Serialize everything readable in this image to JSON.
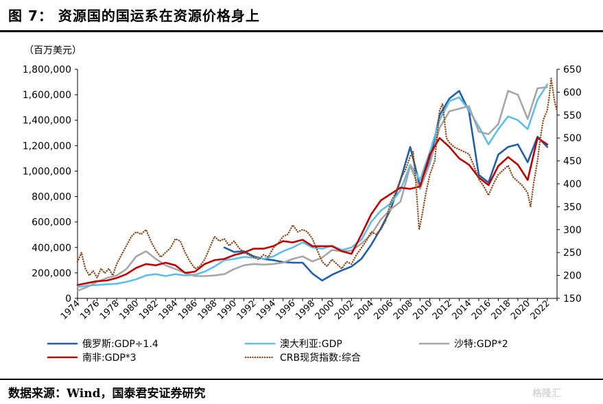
{
  "header": {
    "title": "图 7：  资源国的国运系在资源价格身上"
  },
  "footer": {
    "source": "数据来源：Wind，国泰君安证券研究",
    "watermark": "格隆汇"
  },
  "chart_data": {
    "type": "line",
    "unit_label": "（百万美元）",
    "ylim_left": [
      0,
      1800000
    ],
    "yticks_left": [
      "0",
      "200,000",
      "400,000",
      "600,000",
      "800,000",
      "1,000,000",
      "1,200,000",
      "1,400,000",
      "1,600,000",
      "1,800,000"
    ],
    "ylim_right": [
      150,
      650
    ],
    "yticks_right": [
      "150",
      "200",
      "250",
      "300",
      "350",
      "400",
      "450",
      "500",
      "550",
      "600",
      "650"
    ],
    "xlim": [
      1974,
      2023
    ],
    "xticks": [
      "1974",
      "1976",
      "1978",
      "1980",
      "1982",
      "1984",
      "1986",
      "1988",
      "1990",
      "1992",
      "1994",
      "1996",
      "1998",
      "2000",
      "2002",
      "2004",
      "2006",
      "2008",
      "2010",
      "2012",
      "2014",
      "2016",
      "2018",
      "2020",
      "2022"
    ],
    "grid": false,
    "legend_position": "bottom",
    "series": [
      {
        "name": "俄罗斯:GDP÷1.4",
        "color": "#1f5ea8",
        "style": "solid",
        "axis": "left",
        "x": [
          1989,
          1990,
          1991,
          1992,
          1993,
          1994,
          1995,
          1996,
          1997,
          1998,
          1999,
          2000,
          2001,
          2002,
          2003,
          2004,
          2005,
          2006,
          2007,
          2008,
          2009,
          2010,
          2011,
          2012,
          2013,
          2014,
          2015,
          2016,
          2017,
          2018,
          2019,
          2020,
          2021,
          2022
        ],
        "values": [
          400000,
          365000,
          370000,
          330000,
          310000,
          300000,
          285000,
          280000,
          280000,
          195000,
          140000,
          185000,
          220000,
          250000,
          310000,
          420000,
          550000,
          700000,
          930000,
          1190000,
          880000,
          1080000,
          1440000,
          1570000,
          1630000,
          1470000,
          970000,
          910000,
          1130000,
          1190000,
          1210000,
          1070000,
          1270000,
          1190000
        ]
      },
      {
        "name": "澳大利亚:GDP",
        "color": "#5bbfe9",
        "style": "solid",
        "axis": "left",
        "x": [
          1974,
          1975,
          1976,
          1977,
          1978,
          1979,
          1980,
          1981,
          1982,
          1983,
          1984,
          1985,
          1986,
          1987,
          1988,
          1989,
          1990,
          1991,
          1992,
          1993,
          1994,
          1995,
          1996,
          1997,
          1998,
          1999,
          2000,
          2001,
          2002,
          2003,
          2004,
          2005,
          2006,
          2007,
          2008,
          2009,
          2010,
          2011,
          2012,
          2013,
          2014,
          2015,
          2016,
          2017,
          2018,
          2019,
          2020,
          2021,
          2022
        ],
        "values": [
          90000,
          100000,
          105000,
          110000,
          115000,
          130000,
          150000,
          180000,
          190000,
          175000,
          190000,
          180000,
          185000,
          210000,
          250000,
          300000,
          310000,
          325000,
          320000,
          310000,
          330000,
          370000,
          400000,
          440000,
          400000,
          390000,
          415000,
          380000,
          400000,
          460000,
          600000,
          690000,
          745000,
          850000,
          1050000,
          930000,
          1150000,
          1400000,
          1550000,
          1580000,
          1480000,
          1350000,
          1210000,
          1330000,
          1430000,
          1400000,
          1330000,
          1560000,
          1680000
        ]
      },
      {
        "name": "沙特:GDP*2",
        "color": "#a6a6a6",
        "style": "solid",
        "axis": "left",
        "x": [
          1974,
          1975,
          1976,
          1977,
          1978,
          1979,
          1980,
          1981,
          1982,
          1983,
          1984,
          1985,
          1986,
          1987,
          1988,
          1989,
          1990,
          1991,
          1992,
          1993,
          1994,
          1995,
          1996,
          1997,
          1998,
          1999,
          2000,
          2001,
          2002,
          2003,
          2004,
          2005,
          2006,
          2007,
          2008,
          2009,
          2010,
          2011,
          2012,
          2013,
          2014,
          2015,
          2016,
          2017,
          2018,
          2019,
          2020,
          2021,
          2022
        ],
        "values": [
          60000,
          90000,
          130000,
          160000,
          180000,
          230000,
          330000,
          370000,
          310000,
          260000,
          230000,
          200000,
          175000,
          175000,
          180000,
          190000,
          230000,
          260000,
          270000,
          265000,
          270000,
          280000,
          310000,
          330000,
          290000,
          320000,
          380000,
          370000,
          375000,
          430000,
          500000,
          620000,
          700000,
          760000,
          1040000,
          860000,
          1060000,
          1340000,
          1470000,
          1490000,
          1510000,
          1310000,
          1290000,
          1370000,
          1630000,
          1600000,
          1410000,
          1650000,
          1660000
        ]
      },
      {
        "name": "南非:GDP*3",
        "color": "#c00000",
        "style": "solid",
        "axis": "left",
        "x": [
          1974,
          1975,
          1976,
          1977,
          1978,
          1979,
          1980,
          1981,
          1982,
          1983,
          1984,
          1985,
          1986,
          1987,
          1988,
          1989,
          1990,
          1991,
          1992,
          1993,
          1994,
          1995,
          1996,
          1997,
          1998,
          1999,
          2000,
          2001,
          2002,
          2003,
          2004,
          2005,
          2006,
          2007,
          2008,
          2009,
          2010,
          2011,
          2012,
          2013,
          2014,
          2015,
          2016,
          2017,
          2018,
          2019,
          2020,
          2021,
          2022
        ],
        "values": [
          105000,
          120000,
          135000,
          140000,
          160000,
          190000,
          240000,
          270000,
          260000,
          280000,
          260000,
          200000,
          210000,
          270000,
          300000,
          310000,
          340000,
          360000,
          390000,
          390000,
          410000,
          450000,
          440000,
          460000,
          410000,
          410000,
          410000,
          370000,
          350000,
          500000,
          660000,
          770000,
          820000,
          870000,
          860000,
          880000,
          1130000,
          1260000,
          1190000,
          1100000,
          1050000,
          950000,
          890000,
          1040000,
          1110000,
          1050000,
          930000,
          1260000,
          1210000
        ]
      },
      {
        "name": "CRB现货指数:综合",
        "color": "#8b4513",
        "style": "dotted",
        "axis": "right",
        "x": [
          1974.0,
          1974.4,
          1974.8,
          1975.2,
          1975.6,
          1976.0,
          1976.4,
          1976.8,
          1977.2,
          1977.6,
          1978.0,
          1978.5,
          1979.0,
          1979.5,
          1980.0,
          1980.5,
          1981.0,
          1981.3,
          1981.6,
          1982.0,
          1982.5,
          1983.0,
          1983.5,
          1984.0,
          1984.5,
          1985.0,
          1985.5,
          1986.0,
          1986.5,
          1987.0,
          1987.5,
          1988.0,
          1988.5,
          1989.0,
          1989.5,
          1990.0,
          1990.5,
          1991.0,
          1991.5,
          1992.0,
          1992.5,
          1993.0,
          1993.5,
          1994.0,
          1994.5,
          1995.0,
          1995.5,
          1996.0,
          1996.5,
          1997.0,
          1997.5,
          1998.0,
          1998.5,
          1999.0,
          1999.5,
          2000.0,
          2000.5,
          2001.0,
          2001.5,
          2002.0,
          2002.5,
          2003.0,
          2003.5,
          2004.0,
          2004.5,
          2005.0,
          2005.5,
          2006.0,
          2006.5,
          2007.0,
          2007.5,
          2008.0,
          2008.3,
          2008.6,
          2008.9,
          2009.2,
          2009.6,
          2010.0,
          2010.5,
          2011.0,
          2011.3,
          2011.7,
          2012.0,
          2012.5,
          2013.0,
          2013.5,
          2014.0,
          2014.5,
          2015.0,
          2015.5,
          2016.0,
          2016.5,
          2017.0,
          2017.5,
          2018.0,
          2018.5,
          2019.0,
          2019.5,
          2020.0,
          2020.3,
          2020.6,
          2021.0,
          2021.3,
          2021.6,
          2022.0,
          2022.2,
          2022.4,
          2022.6,
          2022.8,
          2023.0
        ],
        "values": [
          230,
          250,
          215,
          200,
          210,
          195,
          215,
          205,
          215,
          200,
          225,
          245,
          265,
          285,
          295,
          290,
          300,
          285,
          270,
          255,
          240,
          250,
          260,
          280,
          275,
          250,
          230,
          215,
          220,
          235,
          260,
          285,
          275,
          280,
          265,
          275,
          260,
          250,
          245,
          240,
          235,
          245,
          240,
          260,
          270,
          285,
          290,
          310,
          295,
          300,
          295,
          280,
          255,
          230,
          220,
          235,
          225,
          215,
          230,
          225,
          245,
          260,
          275,
          295,
          290,
          300,
          320,
          360,
          380,
          410,
          430,
          460,
          470,
          395,
          300,
          330,
          380,
          420,
          450,
          560,
          575,
          500,
          490,
          480,
          475,
          470,
          465,
          440,
          410,
          395,
          375,
          400,
          420,
          430,
          440,
          415,
          405,
          395,
          380,
          350,
          400,
          450,
          500,
          540,
          560,
          590,
          630,
          600,
          575,
          560
        ]
      }
    ]
  }
}
